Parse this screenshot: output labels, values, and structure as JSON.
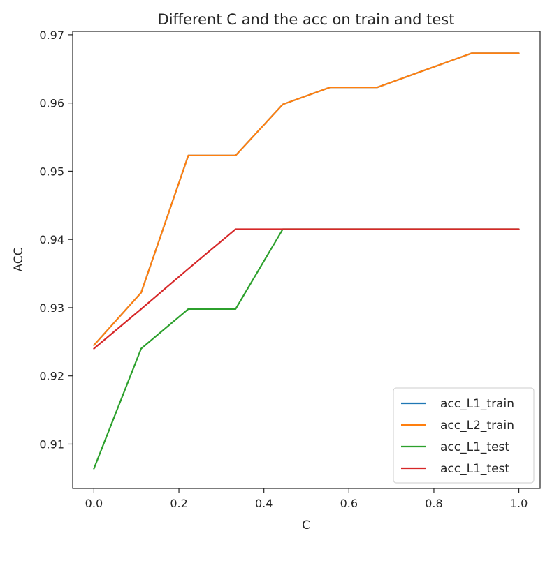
{
  "chart_data": {
    "type": "line",
    "title": "Different C and the acc on train and test",
    "xlabel": "C",
    "ylabel": "ACC",
    "xlim": [
      -0.05,
      1.05
    ],
    "ylim": [
      0.9035,
      0.9705
    ],
    "xticks": [
      0.0,
      0.2,
      0.4,
      0.6,
      0.8,
      1.0
    ],
    "xtick_labels": [
      "0.0",
      "0.2",
      "0.4",
      "0.6",
      "0.8",
      "1.0"
    ],
    "yticks": [
      0.91,
      0.92,
      0.93,
      0.94,
      0.95,
      0.96,
      0.97
    ],
    "ytick_labels": [
      "0.91",
      "0.92",
      "0.93",
      "0.94",
      "0.95",
      "0.96",
      "0.97"
    ],
    "grid": false,
    "legend_position": "lower-right",
    "x": [
      0.0,
      0.1111,
      0.2222,
      0.3333,
      0.4444,
      0.5556,
      0.6667,
      0.7778,
      0.8889,
      1.0
    ],
    "series": [
      {
        "name": "acc_L1_train",
        "color": "#1f77b4",
        "values": [
          0.9245,
          0.9322,
          0.9523,
          0.9523,
          0.9598,
          0.9623,
          0.9623,
          0.9648,
          0.9673,
          0.9673
        ]
      },
      {
        "name": "acc_L2_train",
        "color": "#ff7f0e",
        "values": [
          0.9245,
          0.9322,
          0.9523,
          0.9523,
          0.9598,
          0.9623,
          0.9623,
          0.9648,
          0.9673,
          0.9673
        ]
      },
      {
        "name": "acc_L1_test",
        "color": "#2ca02c",
        "values": [
          0.9064,
          0.924,
          0.9298,
          0.9298,
          0.9415,
          0.9415,
          0.9415,
          0.9415,
          0.9415,
          0.9415
        ]
      },
      {
        "name": "acc_L1_test",
        "color": "#d62728",
        "values": [
          0.924,
          0.9298,
          0.9357,
          0.9415,
          0.9415,
          0.9415,
          0.9415,
          0.9415,
          0.9415,
          0.9415
        ]
      }
    ]
  }
}
